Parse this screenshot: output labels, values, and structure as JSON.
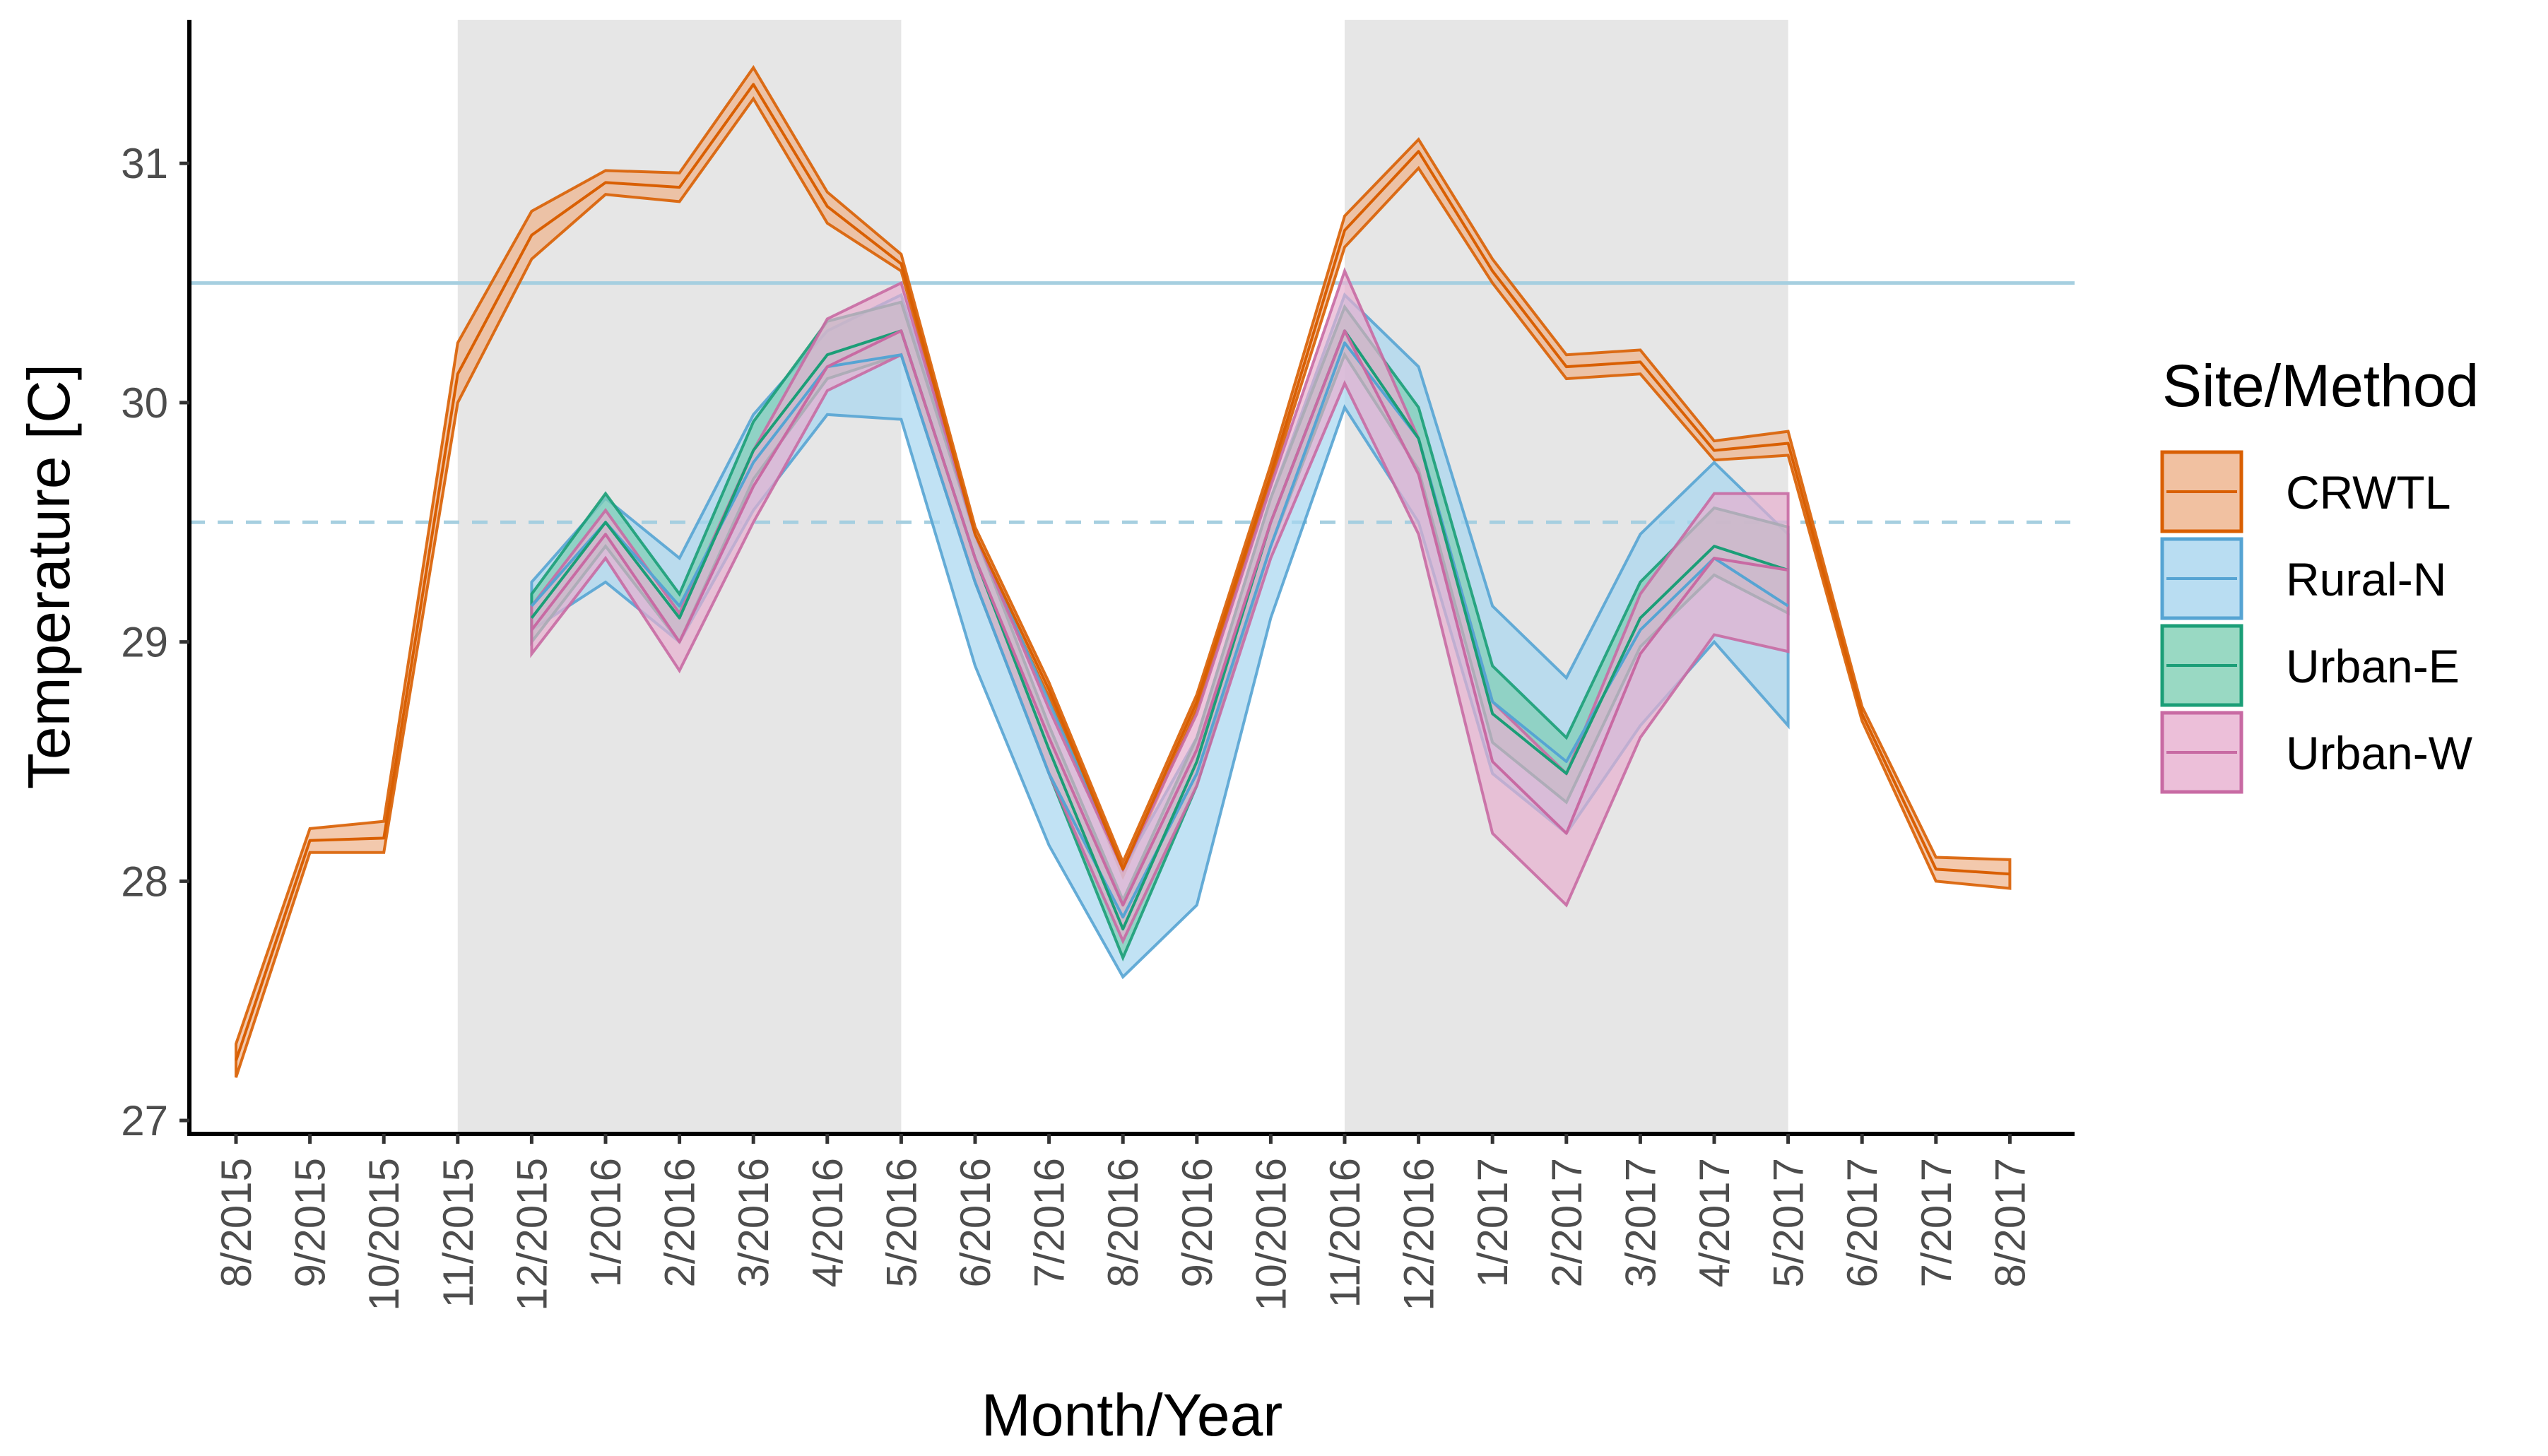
{
  "chart_data": {
    "type": "line",
    "subtype": "line with confidence bands",
    "xlabel": "Month/Year",
    "ylabel": "Temperature [C]",
    "ylim": [
      26.95,
      31.6
    ],
    "yticks": [
      27,
      28,
      29,
      30,
      31
    ],
    "categories": [
      "8/2015",
      "9/2015",
      "10/2015",
      "11/2015",
      "12/2015",
      "1/2016",
      "2/2016",
      "3/2016",
      "4/2016",
      "5/2016",
      "6/2016",
      "7/2016",
      "8/2016",
      "9/2016",
      "10/2016",
      "11/2016",
      "12/2016",
      "1/2017",
      "2/2017",
      "3/2017",
      "4/2017",
      "5/2017",
      "6/2017",
      "7/2017",
      "8/2017"
    ],
    "shaded_periods": [
      {
        "start": "11/2015",
        "end": "5/2016",
        "color": "#e6e6e6"
      },
      {
        "start": "11/2016",
        "end": "5/2017",
        "color": "#e6e6e6"
      }
    ],
    "reference_lines": [
      {
        "y": 30.5,
        "style": "solid",
        "color": "#a6cfe0"
      },
      {
        "y": 29.5,
        "style": "dashed",
        "color": "#a6cfe0"
      }
    ],
    "legend": {
      "title": "Site/Method",
      "position": "right"
    },
    "series": [
      {
        "name": "CRWTL",
        "color": "#d95f02",
        "fill": "#eeb28a",
        "values": [
          27.25,
          28.17,
          28.18,
          30.12,
          30.7,
          30.92,
          30.9,
          31.33,
          30.82,
          30.58,
          29.45,
          28.8,
          28.05,
          28.75,
          29.7,
          30.72,
          31.05,
          30.55,
          30.15,
          30.17,
          29.8,
          29.83,
          28.7,
          28.05,
          28.03
        ],
        "lower": [
          27.18,
          28.12,
          28.12,
          30.0,
          30.6,
          30.87,
          30.84,
          31.27,
          30.75,
          30.55,
          29.42,
          28.77,
          28.02,
          28.72,
          29.67,
          30.65,
          30.98,
          30.5,
          30.1,
          30.12,
          29.76,
          29.78,
          28.67,
          28.0,
          27.97
        ],
        "upper": [
          27.32,
          28.22,
          28.25,
          30.25,
          30.8,
          30.97,
          30.96,
          31.4,
          30.88,
          30.62,
          29.48,
          28.83,
          28.08,
          28.78,
          29.74,
          30.78,
          31.1,
          30.6,
          30.2,
          30.22,
          29.84,
          29.88,
          28.73,
          28.1,
          28.09
        ]
      },
      {
        "name": "Rural-N",
        "color": "#56a4d3",
        "fill": "#a7d5ef",
        "values": [
          null,
          null,
          null,
          null,
          29.15,
          29.5,
          29.15,
          29.75,
          30.15,
          30.2,
          29.25,
          28.45,
          27.85,
          28.45,
          29.4,
          30.25,
          29.85,
          28.75,
          28.5,
          29.05,
          29.35,
          29.15,
          null,
          null,
          null
        ],
        "lower": [
          null,
          null,
          null,
          null,
          29.05,
          29.25,
          29.0,
          29.55,
          29.95,
          29.93,
          28.9,
          28.15,
          27.6,
          27.9,
          29.1,
          29.98,
          29.5,
          28.45,
          28.2,
          28.65,
          29.0,
          28.65,
          null,
          null,
          null
        ],
        "upper": [
          null,
          null,
          null,
          null,
          29.25,
          29.6,
          29.35,
          29.95,
          30.3,
          30.45,
          29.45,
          28.75,
          28.05,
          28.6,
          29.6,
          30.45,
          30.15,
          29.15,
          28.85,
          29.45,
          29.75,
          29.45,
          null,
          null,
          null
        ]
      },
      {
        "name": "Urban-E",
        "color": "#1b9e77",
        "fill": "#7fcfb4",
        "values": [
          null,
          null,
          null,
          null,
          29.1,
          29.5,
          29.1,
          29.8,
          30.2,
          30.3,
          29.35,
          28.55,
          27.8,
          28.5,
          29.5,
          30.3,
          29.85,
          28.7,
          28.45,
          29.1,
          29.4,
          29.3,
          null,
          null,
          null
        ],
        "lower": [
          null,
          null,
          null,
          null,
          29.0,
          29.4,
          29.0,
          29.68,
          30.1,
          30.2,
          29.25,
          28.45,
          27.68,
          28.4,
          29.4,
          30.2,
          29.72,
          28.58,
          28.33,
          28.98,
          29.28,
          29.12,
          null,
          null,
          null
        ],
        "upper": [
          null,
          null,
          null,
          null,
          29.2,
          29.62,
          29.2,
          29.92,
          30.34,
          30.42,
          29.45,
          28.65,
          27.92,
          28.6,
          29.6,
          30.4,
          29.98,
          28.9,
          28.6,
          29.25,
          29.56,
          29.48,
          null,
          null,
          null
        ]
      },
      {
        "name": "Urban-W",
        "color": "#c86aa3",
        "fill": "#e7afcf",
        "values": [
          null,
          null,
          null,
          null,
          29.05,
          29.45,
          29.0,
          29.65,
          30.15,
          30.3,
          29.35,
          28.6,
          27.9,
          28.55,
          29.5,
          30.3,
          29.7,
          28.5,
          28.2,
          28.95,
          29.35,
          29.3,
          null,
          null,
          null
        ],
        "lower": [
          null,
          null,
          null,
          null,
          28.95,
          29.35,
          28.88,
          29.5,
          30.05,
          30.2,
          29.25,
          28.45,
          27.75,
          28.4,
          29.35,
          30.08,
          29.45,
          28.2,
          27.9,
          28.6,
          29.03,
          28.96,
          null,
          null,
          null
        ],
        "upper": [
          null,
          null,
          null,
          null,
          29.15,
          29.55,
          29.12,
          29.8,
          30.35,
          30.5,
          29.45,
          28.72,
          28.05,
          28.7,
          29.65,
          30.55,
          29.85,
          28.75,
          28.45,
          29.2,
          29.62,
          29.62,
          null,
          null,
          null
        ]
      }
    ]
  }
}
